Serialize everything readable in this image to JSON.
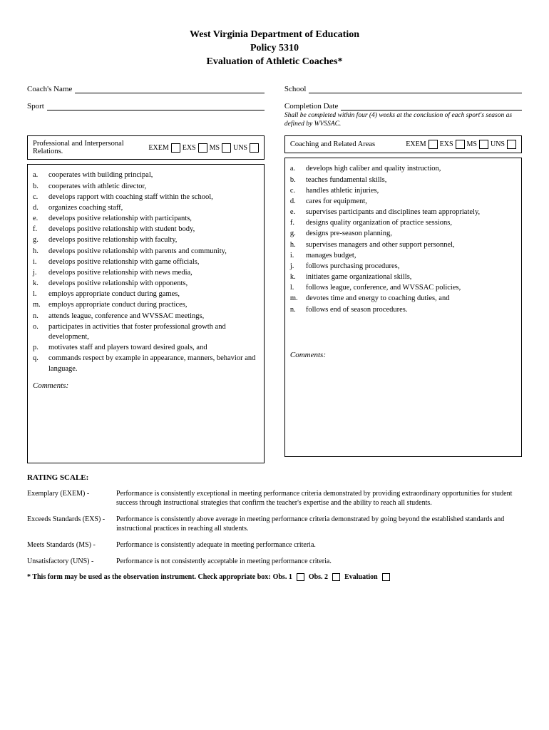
{
  "header": {
    "line1": "West Virginia Department of Education",
    "line2": "Policy 5310",
    "line3": "Evaluation of Athletic Coaches*"
  },
  "fields": {
    "coach_name_label": "Coach's Name",
    "sport_label": "Sport",
    "school_label": "School",
    "completion_date_label": "Completion Date",
    "completion_note": "Shall be completed within four (4) weeks at the conclusion of each sport's season as defined by WVSSAC."
  },
  "ratings": {
    "exem": "EXEM",
    "exs": "EXS",
    "ms": "MS",
    "uns": "UNS"
  },
  "section1": {
    "title": "Professional and Interpersonal Relations.",
    "items": [
      "cooperates with building principal,",
      "cooperates with athletic director,",
      "develops rapport with coaching staff within the school,",
      "organizes coaching staff,",
      "develops positive relationship with participants,",
      "develops positive relationship with student body,",
      "develops positive relationship with faculty,",
      "develops positive relationship with parents and community,",
      "develops positive relationship with game officials,",
      "develops positive relationship with news media,",
      "develops positive relationship with opponents,",
      "employs appropriate conduct during games,",
      "employs appropriate conduct during practices,",
      "attends league, conference and WVSSAC meetings,",
      "participates in activities that foster professional growth and development,",
      "motivates staff and players toward desired goals, and",
      "commands respect by example in appearance, manners, behavior and language."
    ],
    "comments": "Comments:"
  },
  "section2": {
    "title": "Coaching and Related Areas",
    "items": [
      "develops high caliber and quality instruction,",
      "teaches fundamental skills,",
      "handles athletic injuries,",
      "cares for equipment,",
      "supervises participants and disciplines team appropriately,",
      "designs quality organization of practice sessions,",
      "designs pre-season planning,",
      "supervises managers and other support personnel,",
      "manages budget,",
      "follows purchasing procedures,",
      "initiates game organizational skills,",
      "follows league, conference, and WVSSAC policies,",
      "devotes time and energy to coaching duties, and",
      "follows end of season procedures."
    ],
    "comments": "Comments:"
  },
  "letters": [
    "a.",
    "b.",
    "c.",
    "d.",
    "e.",
    "f.",
    "g.",
    "h.",
    "i.",
    "j.",
    "k.",
    "l.",
    "m.",
    "n.",
    "o.",
    "p.",
    "q."
  ],
  "rating_scale": {
    "title": "RATING SCALE:",
    "rows": [
      {
        "term": "Exemplary (EXEM) -",
        "desc": "Performance is consistently exceptional in meeting performance criteria demonstrated by providing extraordinary opportunities for student success through instructional strategies that confirm the teacher's expertise and the ability to reach all students."
      },
      {
        "term": "Exceeds Standards (EXS) -",
        "desc": "Performance is consistently above average in meeting performance criteria demonstrated by going beyond the established standards and instructional practices in reaching all students."
      },
      {
        "term": "Meets Standards (MS) -",
        "desc": "Performance is consistently adequate in meeting performance criteria."
      },
      {
        "term": "Unsatisfactory (UNS) -",
        "desc": "Performance is not consistently acceptable in meeting performance criteria."
      }
    ]
  },
  "footer": {
    "text": "* This form may be used as the observation instrument.  Check appropriate box:",
    "obs1": "Obs. 1",
    "obs2": "Obs. 2",
    "eval": "Evaluation"
  }
}
